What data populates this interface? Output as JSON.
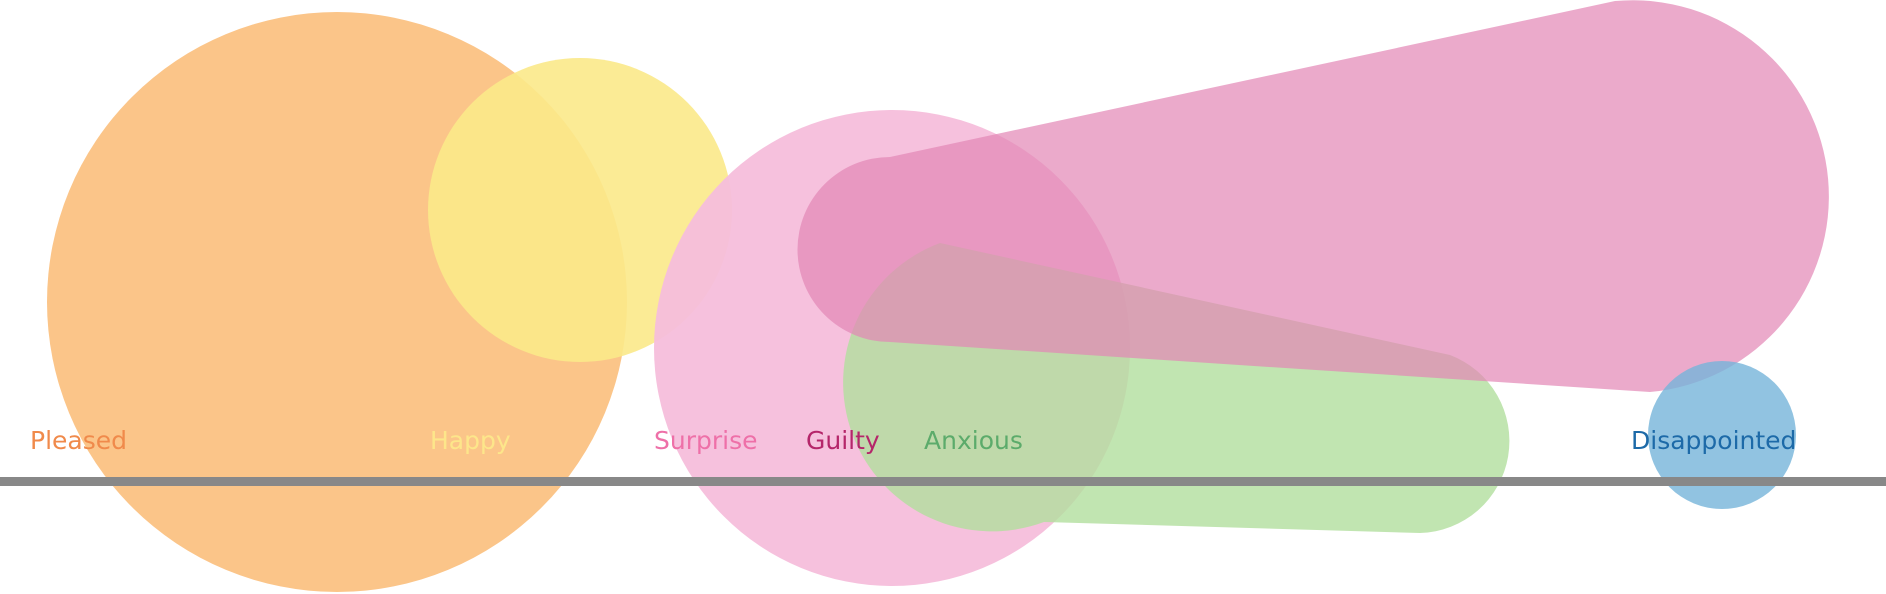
{
  "diagram": {
    "emotions": [
      {
        "id": "pleased",
        "label": "Pleased",
        "fill": "#fbc589",
        "text_color": "#f08a4b"
      },
      {
        "id": "happy",
        "label": "Happy",
        "fill": "#fbe98a",
        "text_color": "#fde68a"
      },
      {
        "id": "surprise",
        "label": "Surprise",
        "fill": "#f5bedb",
        "text_color": "#ee70a8"
      },
      {
        "id": "guilty",
        "label": "Guilty",
        "fill": "#e386b5",
        "text_color": "#b5266a"
      },
      {
        "id": "anxious",
        "label": "Anxious",
        "fill": "#b2de9e",
        "text_color": "#5cab6b"
      },
      {
        "id": "disappointed",
        "label": "Disappointed",
        "fill": "#76b4da",
        "text_color": "#1d6aa8"
      }
    ],
    "baseline_color": "#888888"
  }
}
